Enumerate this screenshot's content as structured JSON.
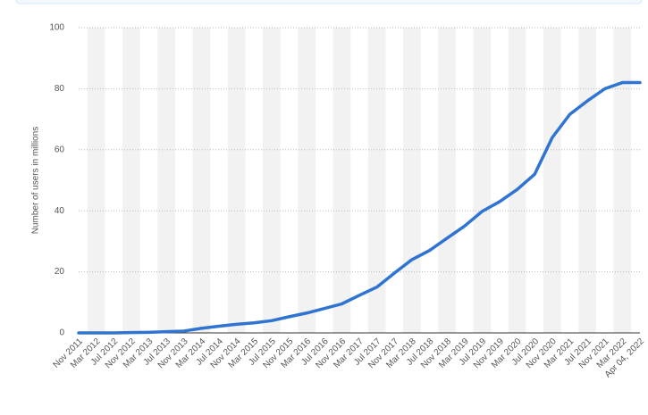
{
  "chart_data": {
    "type": "line",
    "y_label": "Number of users in millions",
    "categories": [
      "Nov 2011",
      "Mar 2012",
      "Jul 2012",
      "Nov 2012",
      "Mar 2013",
      "Jul 2013",
      "Nov 2013",
      "Mar 2014",
      "Jul 2014",
      "Nov 2014",
      "Mar 2015",
      "Jul 2015",
      "Nov 2015",
      "Mar 2016",
      "Jul 2016",
      "Nov 2016",
      "Mar 2017",
      "Jul 2017",
      "Nov 2017",
      "Mar 2018",
      "Jul 2018",
      "Nov 2018",
      "Mar 2019",
      "Jul 2019",
      "Nov 2019",
      "Mar 2020",
      "Jul 2020",
      "Nov 2020",
      "Mar 2021",
      "Jul 2021",
      "Nov 2021",
      "Mar 2022",
      "Apr 04, 2022"
    ],
    "values": [
      0,
      0,
      0,
      0.1,
      0.2,
      0.4,
      0.6,
      1.5,
      2.2,
      2.8,
      3.3,
      4,
      5.3,
      6.5,
      8,
      9.5,
      12.3,
      15,
      19.6,
      24,
      27,
      31,
      35,
      39.8,
      43,
      47,
      52,
      64,
      71.6,
      76,
      80,
      82,
      82
    ],
    "color": "#2f74d0",
    "ylim": [
      0,
      100
    ],
    "yticks": [
      0,
      20,
      40,
      60,
      80,
      100
    ],
    "grid": true
  }
}
